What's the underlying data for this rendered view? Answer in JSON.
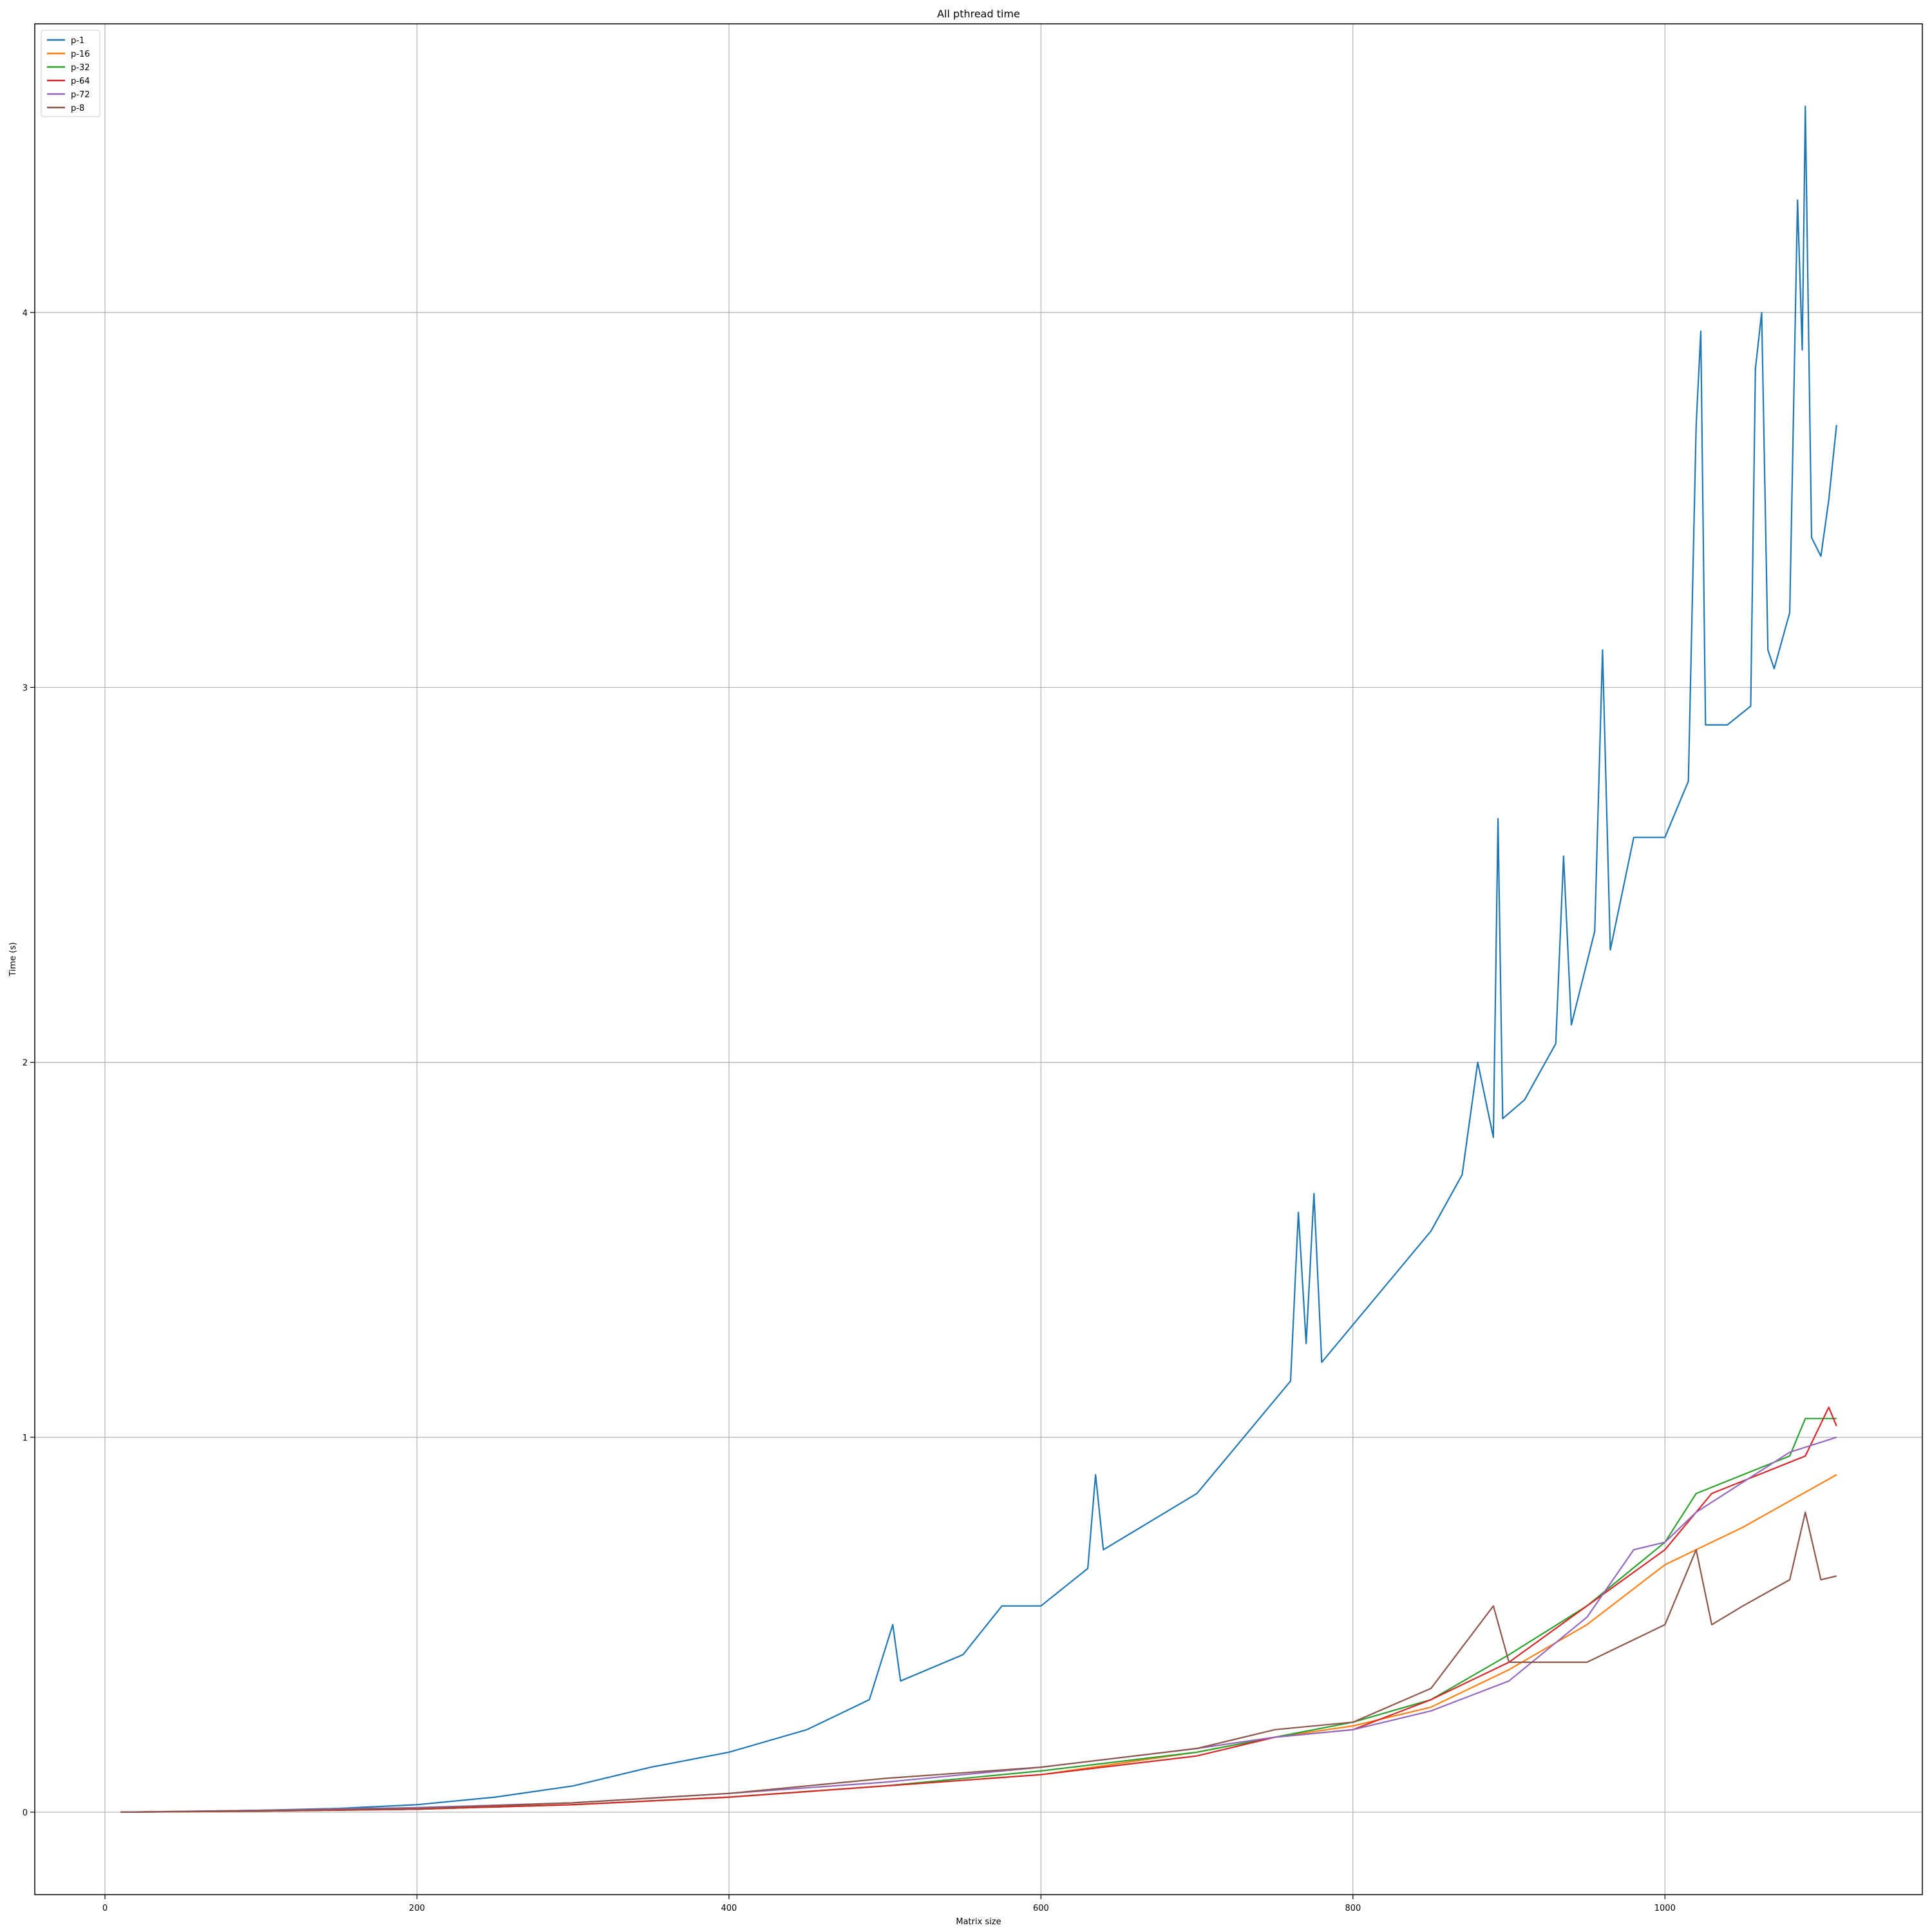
{
  "chart_data": {
    "type": "line",
    "title": "All pthread time",
    "xlabel": "Matrix size",
    "ylabel": "Time (s)",
    "xlim": [
      -45,
      1165
    ],
    "ylim": [
      -0.22,
      4.77
    ],
    "xticks": [
      0,
      200,
      400,
      600,
      800,
      1000
    ],
    "xtick_labels": [
      "0",
      "200",
      "400",
      "600",
      "800",
      "1000"
    ],
    "yticks": [
      0,
      1,
      2,
      3,
      4
    ],
    "ytick_labels": [
      "0",
      "1",
      "2",
      "3",
      "4"
    ],
    "grid": true,
    "legend_position": "top-left",
    "series": [
      {
        "name": "p-1",
        "color": "#1f77b4",
        "points": [
          [
            10,
            0
          ],
          [
            50,
            0.002
          ],
          [
            100,
            0.005
          ],
          [
            150,
            0.01
          ],
          [
            200,
            0.02
          ],
          [
            250,
            0.04
          ],
          [
            300,
            0.07
          ],
          [
            350,
            0.12
          ],
          [
            400,
            0.16
          ],
          [
            450,
            0.22
          ],
          [
            490,
            0.3
          ],
          [
            505,
            0.5
          ],
          [
            510,
            0.35
          ],
          [
            550,
            0.42
          ],
          [
            575,
            0.55
          ],
          [
            600,
            0.55
          ],
          [
            630,
            0.65
          ],
          [
            635,
            0.9
          ],
          [
            640,
            0.7
          ],
          [
            700,
            0.85
          ],
          [
            720,
            0.95
          ],
          [
            760,
            1.15
          ],
          [
            765,
            1.6
          ],
          [
            770,
            1.25
          ],
          [
            775,
            1.65
          ],
          [
            780,
            1.2
          ],
          [
            800,
            1.3
          ],
          [
            850,
            1.55
          ],
          [
            870,
            1.7
          ],
          [
            880,
            2.0
          ],
          [
            890,
            1.8
          ],
          [
            893,
            2.65
          ],
          [
            896,
            1.85
          ],
          [
            910,
            1.9
          ],
          [
            930,
            2.05
          ],
          [
            935,
            2.55
          ],
          [
            940,
            2.1
          ],
          [
            955,
            2.35
          ],
          [
            960,
            3.1
          ],
          [
            965,
            2.3
          ],
          [
            980,
            2.6
          ],
          [
            1000,
            2.6
          ],
          [
            1015,
            2.75
          ],
          [
            1020,
            3.7
          ],
          [
            1023,
            3.95
          ],
          [
            1026,
            2.9
          ],
          [
            1040,
            2.9
          ],
          [
            1055,
            2.95
          ],
          [
            1058,
            3.85
          ],
          [
            1062,
            4.0
          ],
          [
            1066,
            3.1
          ],
          [
            1070,
            3.05
          ],
          [
            1080,
            3.2
          ],
          [
            1085,
            4.3
          ],
          [
            1088,
            3.9
          ],
          [
            1090,
            4.55
          ],
          [
            1094,
            3.4
          ],
          [
            1100,
            3.35
          ],
          [
            1105,
            3.5
          ],
          [
            1110,
            3.7
          ]
        ]
      },
      {
        "name": "p-16",
        "color": "#ff7f0e",
        "points": [
          [
            10,
            0
          ],
          [
            100,
            0.003
          ],
          [
            200,
            0.008
          ],
          [
            300,
            0.02
          ],
          [
            400,
            0.04
          ],
          [
            500,
            0.07
          ],
          [
            600,
            0.1
          ],
          [
            700,
            0.16
          ],
          [
            750,
            0.2
          ],
          [
            800,
            0.23
          ],
          [
            850,
            0.28
          ],
          [
            900,
            0.38
          ],
          [
            950,
            0.5
          ],
          [
            1000,
            0.66
          ],
          [
            1050,
            0.76
          ],
          [
            1080,
            0.83
          ],
          [
            1110,
            0.9
          ]
        ]
      },
      {
        "name": "p-32",
        "color": "#2ca02c",
        "points": [
          [
            10,
            0
          ],
          [
            100,
            0.003
          ],
          [
            200,
            0.008
          ],
          [
            300,
            0.02
          ],
          [
            400,
            0.04
          ],
          [
            500,
            0.07
          ],
          [
            600,
            0.11
          ],
          [
            700,
            0.16
          ],
          [
            750,
            0.2
          ],
          [
            800,
            0.24
          ],
          [
            850,
            0.3
          ],
          [
            900,
            0.42
          ],
          [
            950,
            0.55
          ],
          [
            1000,
            0.72
          ],
          [
            1020,
            0.85
          ],
          [
            1050,
            0.9
          ],
          [
            1080,
            0.95
          ],
          [
            1090,
            1.05
          ],
          [
            1110,
            1.05
          ]
        ]
      },
      {
        "name": "p-64",
        "color": "#d62728",
        "points": [
          [
            10,
            0
          ],
          [
            100,
            0.003
          ],
          [
            200,
            0.008
          ],
          [
            300,
            0.02
          ],
          [
            400,
            0.04
          ],
          [
            500,
            0.07
          ],
          [
            600,
            0.1
          ],
          [
            700,
            0.15
          ],
          [
            750,
            0.2
          ],
          [
            800,
            0.22
          ],
          [
            850,
            0.3
          ],
          [
            900,
            0.4
          ],
          [
            950,
            0.55
          ],
          [
            1000,
            0.7
          ],
          [
            1030,
            0.85
          ],
          [
            1060,
            0.9
          ],
          [
            1090,
            0.95
          ],
          [
            1105,
            1.08
          ],
          [
            1110,
            1.03
          ]
        ]
      },
      {
        "name": "p-72",
        "color": "#9467bd",
        "points": [
          [
            10,
            0
          ],
          [
            100,
            0.005
          ],
          [
            200,
            0.012
          ],
          [
            300,
            0.025
          ],
          [
            400,
            0.05
          ],
          [
            500,
            0.08
          ],
          [
            600,
            0.12
          ],
          [
            700,
            0.17
          ],
          [
            750,
            0.2
          ],
          [
            800,
            0.22
          ],
          [
            850,
            0.27
          ],
          [
            900,
            0.35
          ],
          [
            950,
            0.52
          ],
          [
            980,
            0.7
          ],
          [
            1000,
            0.72
          ],
          [
            1020,
            0.8
          ],
          [
            1050,
            0.88
          ],
          [
            1080,
            0.96
          ],
          [
            1110,
            1.0
          ]
        ]
      },
      {
        "name": "p-8",
        "color": "#8c564b",
        "points": [
          [
            10,
            0
          ],
          [
            100,
            0.004
          ],
          [
            200,
            0.01
          ],
          [
            300,
            0.025
          ],
          [
            400,
            0.05
          ],
          [
            500,
            0.09
          ],
          [
            600,
            0.12
          ],
          [
            700,
            0.17
          ],
          [
            750,
            0.22
          ],
          [
            800,
            0.24
          ],
          [
            850,
            0.33
          ],
          [
            890,
            0.55
          ],
          [
            900,
            0.4
          ],
          [
            950,
            0.4
          ],
          [
            1000,
            0.5
          ],
          [
            1020,
            0.7
          ],
          [
            1030,
            0.5
          ],
          [
            1050,
            0.55
          ],
          [
            1080,
            0.62
          ],
          [
            1090,
            0.8
          ],
          [
            1100,
            0.62
          ],
          [
            1110,
            0.63
          ]
        ]
      }
    ]
  }
}
